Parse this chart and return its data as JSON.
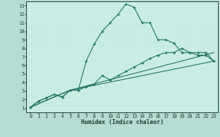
{
  "xlabel": "Humidex (Indice chaleur)",
  "xlim": [
    -0.5,
    23.5
  ],
  "ylim": [
    0.5,
    13.5
  ],
  "xticks": [
    0,
    1,
    2,
    3,
    4,
    5,
    6,
    7,
    8,
    9,
    10,
    11,
    12,
    13,
    14,
    15,
    16,
    17,
    18,
    19,
    20,
    21,
    22,
    23
  ],
  "yticks": [
    1,
    2,
    3,
    4,
    5,
    6,
    7,
    8,
    9,
    10,
    11,
    12,
    13
  ],
  "bg_color": "#b8dcd4",
  "plot_bg": "#c8ece4",
  "line_color": "#1a6e5e",
  "grid_color": "#d8ece8",
  "line1_x": [
    0,
    1,
    2,
    3,
    4,
    4,
    5,
    6,
    7,
    8,
    9,
    10,
    11,
    12,
    13,
    14,
    15,
    16,
    17,
    18,
    19,
    20,
    21,
    22,
    23
  ],
  "line1_y": [
    1.1,
    1.8,
    2.2,
    2.6,
    2.3,
    2.3,
    3.1,
    3.1,
    6.5,
    8.5,
    10.0,
    11.0,
    12.0,
    13.2,
    12.8,
    11.0,
    11.0,
    9.0,
    9.0,
    8.6,
    7.5,
    7.5,
    7.2,
    7.2,
    6.5
  ],
  "line2_x": [
    0,
    1,
    2,
    3,
    4,
    5,
    6,
    7,
    8,
    9,
    10,
    11,
    12,
    13,
    14,
    15,
    16,
    17,
    18,
    19,
    20,
    21,
    22,
    23
  ],
  "line2_y": [
    1.1,
    1.8,
    2.2,
    2.6,
    2.3,
    3.1,
    3.1,
    3.5,
    3.8,
    4.8,
    4.3,
    4.8,
    5.3,
    5.8,
    6.3,
    6.8,
    7.2,
    7.5,
    7.5,
    8.0,
    7.5,
    7.5,
    7.5,
    6.5
  ],
  "line3_x": [
    0,
    5,
    23
  ],
  "line3_y": [
    1.1,
    3.1,
    7.5
  ],
  "line4_x": [
    0,
    5,
    23
  ],
  "line4_y": [
    1.1,
    3.1,
    6.5
  ]
}
